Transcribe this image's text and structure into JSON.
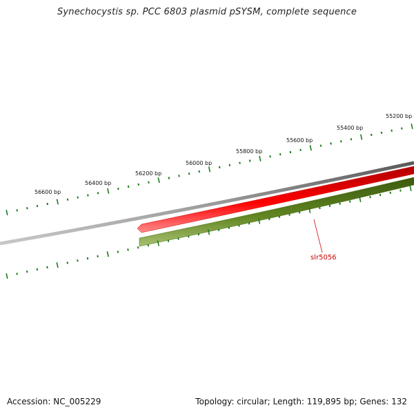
{
  "title": "Synechocystis sp. PCC 6803 plasmid pSYSM, complete sequence",
  "top_ruler": {
    "labels": [
      "56600 bp",
      "56400 bp",
      "56200 bp",
      "56000 bp",
      "55800 bp",
      "55600 bp",
      "55400 bp",
      "55200 bp"
    ],
    "color": "#1a7a1a"
  },
  "backbone": {
    "color": "#808080"
  },
  "genes": [
    {
      "strand": "reverse",
      "color": "#ee0000"
    },
    {
      "strand": "forward",
      "color": "#5a7a1a",
      "label": "slr5056",
      "label_color": "#cc0000"
    }
  ],
  "bottom_ruler": {
    "color": "#1a7a1a"
  },
  "footer": {
    "accession": "Accession: NC_005229",
    "summary": "Topology: circular; Length: 119,895 bp; Genes: 132"
  }
}
